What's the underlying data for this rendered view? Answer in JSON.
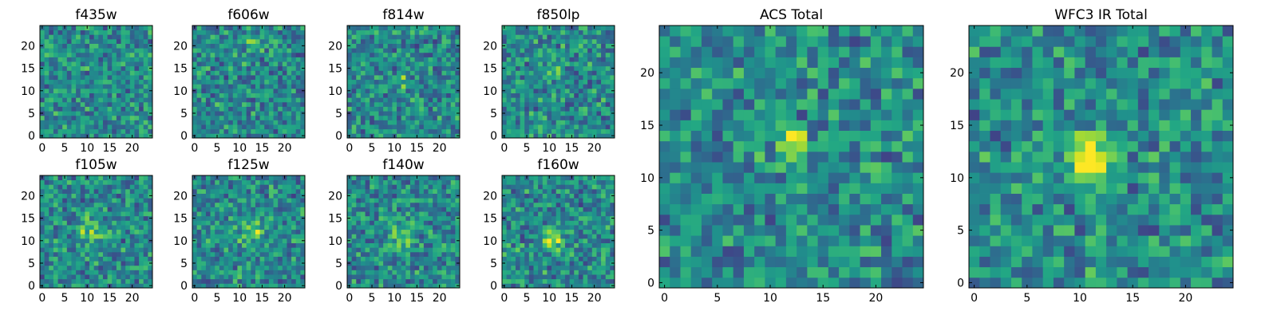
{
  "figure": {
    "background": "#ffffff",
    "colormap": "viridis"
  },
  "chart_data": [
    {
      "type": "heatmap",
      "title": "f435w",
      "grid_size": 25,
      "xlim": [
        -0.5,
        24.5
      ],
      "ylim": [
        -0.5,
        24.5
      ],
      "x_ticks": [
        "0",
        "5",
        "10",
        "15",
        "20"
      ],
      "y_ticks": [
        "0",
        "5",
        "10",
        "15",
        "20"
      ],
      "grid": false,
      "values_note": "random noise field; no clear central source",
      "seed": 435,
      "source": null
    },
    {
      "type": "heatmap",
      "title": "f606w",
      "grid_size": 25,
      "xlim": [
        -0.5,
        24.5
      ],
      "ylim": [
        -0.5,
        24.5
      ],
      "x_ticks": [
        "0",
        "5",
        "10",
        "15",
        "20"
      ],
      "y_ticks": [
        "0",
        "5",
        "10",
        "15",
        "20"
      ],
      "grid": false,
      "seed": 606,
      "source": {
        "x": 13,
        "y": 21,
        "amp": 0.35,
        "sigma": 1.0
      }
    },
    {
      "type": "heatmap",
      "title": "f814w",
      "grid_size": 25,
      "xlim": [
        -0.5,
        24.5
      ],
      "ylim": [
        -0.5,
        24.5
      ],
      "x_ticks": [
        "0",
        "5",
        "10",
        "15",
        "20"
      ],
      "y_ticks": [
        "0",
        "5",
        "10",
        "15",
        "20"
      ],
      "grid": false,
      "seed": 814,
      "source": {
        "x": 12,
        "y": 12,
        "amp": 0.25,
        "sigma": 1.2
      }
    },
    {
      "type": "heatmap",
      "title": "f850lp",
      "grid_size": 25,
      "xlim": [
        -0.5,
        24.5
      ],
      "ylim": [
        -0.5,
        24.5
      ],
      "x_ticks": [
        "0",
        "5",
        "10",
        "15",
        "20"
      ],
      "y_ticks": [
        "0",
        "5",
        "10",
        "15",
        "20"
      ],
      "grid": false,
      "seed": 850,
      "source": {
        "x": 12,
        "y": 14,
        "amp": 0.2,
        "sigma": 1.3
      }
    },
    {
      "type": "heatmap",
      "title": "f105w",
      "grid_size": 25,
      "xlim": [
        -0.5,
        24.5
      ],
      "ylim": [
        -0.5,
        24.5
      ],
      "x_ticks": [
        "0",
        "5",
        "10",
        "15",
        "20"
      ],
      "y_ticks": [
        "0",
        "5",
        "10",
        "15",
        "20"
      ],
      "grid": false,
      "seed": 105,
      "source": {
        "x": 11,
        "y": 12,
        "amp": 0.3,
        "sigma": 2.0
      }
    },
    {
      "type": "heatmap",
      "title": "f125w",
      "grid_size": 25,
      "xlim": [
        -0.5,
        24.5
      ],
      "ylim": [
        -0.5,
        24.5
      ],
      "x_ticks": [
        "0",
        "5",
        "10",
        "15",
        "20"
      ],
      "y_ticks": [
        "0",
        "5",
        "10",
        "15",
        "20"
      ],
      "grid": false,
      "seed": 125,
      "source": {
        "x": 13,
        "y": 12,
        "amp": 0.3,
        "sigma": 2.0
      }
    },
    {
      "type": "heatmap",
      "title": "f140w",
      "grid_size": 25,
      "xlim": [
        -0.5,
        24.5
      ],
      "ylim": [
        -0.5,
        24.5
      ],
      "x_ticks": [
        "0",
        "5",
        "10",
        "15",
        "20"
      ],
      "y_ticks": [
        "0",
        "5",
        "10",
        "15",
        "20"
      ],
      "grid": false,
      "seed": 140,
      "source": {
        "x": 12,
        "y": 11,
        "amp": 0.3,
        "sigma": 2.0
      }
    },
    {
      "type": "heatmap",
      "title": "f160w",
      "grid_size": 25,
      "xlim": [
        -0.5,
        24.5
      ],
      "ylim": [
        -0.5,
        24.5
      ],
      "x_ticks": [
        "0",
        "5",
        "10",
        "15",
        "20"
      ],
      "y_ticks": [
        "0",
        "5",
        "10",
        "15",
        "20"
      ],
      "grid": false,
      "seed": 160,
      "source": {
        "x": 11,
        "y": 10,
        "amp": 0.4,
        "sigma": 1.6
      }
    },
    {
      "type": "heatmap",
      "title": "ACS Total",
      "grid_size": 25,
      "xlim": [
        -0.5,
        24.5
      ],
      "ylim": [
        -0.5,
        24.5
      ],
      "x_ticks": [
        "0",
        "5",
        "10",
        "15",
        "20"
      ],
      "y_ticks": [
        "0",
        "5",
        "10",
        "15",
        "20"
      ],
      "grid": false,
      "seed": 1000,
      "source": {
        "x": 12,
        "y": 13,
        "amp": 0.55,
        "sigma": 1.1
      }
    },
    {
      "type": "heatmap",
      "title": "WFC3 IR Total",
      "grid_size": 25,
      "xlim": [
        -0.5,
        24.5
      ],
      "ylim": [
        -0.5,
        24.5
      ],
      "x_ticks": [
        "0",
        "5",
        "10",
        "15",
        "20"
      ],
      "y_ticks": [
        "0",
        "5",
        "10",
        "15",
        "20"
      ],
      "grid": false,
      "seed": 2000,
      "source": {
        "x": 11,
        "y": 12,
        "amp": 0.55,
        "sigma": 1.6
      }
    }
  ]
}
